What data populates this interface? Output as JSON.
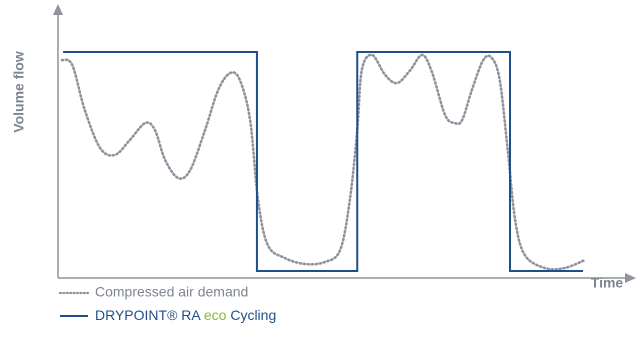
{
  "chart_data": {
    "type": "line",
    "ylabel": "Volume flow",
    "xlabel": "Time",
    "xlim": [
      0,
      100
    ],
    "ylim": [
      0,
      100
    ],
    "series": [
      {
        "name": "Compressed air demand",
        "color": "#8e939c",
        "style": "dotted",
        "smooth": true,
        "x": [
          0.7,
          2.5,
          4.7,
          7.4,
          10.0,
          12.6,
          15.3,
          17.0,
          18.8,
          21.1,
          23.2,
          25.8,
          28.1,
          30.2,
          31.9,
          33.7,
          35.1,
          36.8,
          39.8,
          43.3,
          46.8,
          49.5,
          51.2,
          52.5,
          53.3,
          55.1,
          57.4,
          59.5,
          61.8,
          63.9,
          65.6,
          67.9,
          69.6,
          70.9,
          72.6,
          74.6,
          76.1,
          77.5,
          78.9,
          80.2,
          81.9,
          85.4,
          88.9,
          92.5
        ],
        "values": [
          80.7,
          78.9,
          62.2,
          48.1,
          45.6,
          51.1,
          57.4,
          54.8,
          43.7,
          37.0,
          40.0,
          54.8,
          69.6,
          75.9,
          73.3,
          58.5,
          28.9,
          12.2,
          7.4,
          5.2,
          5.9,
          10.4,
          28.9,
          54.8,
          77.0,
          82.6,
          75.2,
          72.2,
          77.0,
          82.6,
          76.3,
          60.4,
          57.4,
          58.5,
          69.6,
          80.7,
          81.5,
          73.3,
          47.4,
          21.5,
          8.5,
          3.7,
          3.7,
          6.7
        ]
      },
      {
        "name": [
          "DRYPOINT® RA ",
          "eco",
          " Cycling"
        ],
        "name_colors": [
          "#1f4e8c",
          "#8ab833",
          "#1f4e8c"
        ],
        "color": "#1f4e8c",
        "style": "solid",
        "smooth": false,
        "x": [
          0.9,
          34.9,
          34.9,
          52.5,
          52.5,
          79.3,
          79.3,
          92.1
        ],
        "values": [
          83.7,
          83.7,
          2.6,
          2.6,
          83.7,
          83.7,
          2.6,
          2.6
        ]
      }
    ]
  }
}
